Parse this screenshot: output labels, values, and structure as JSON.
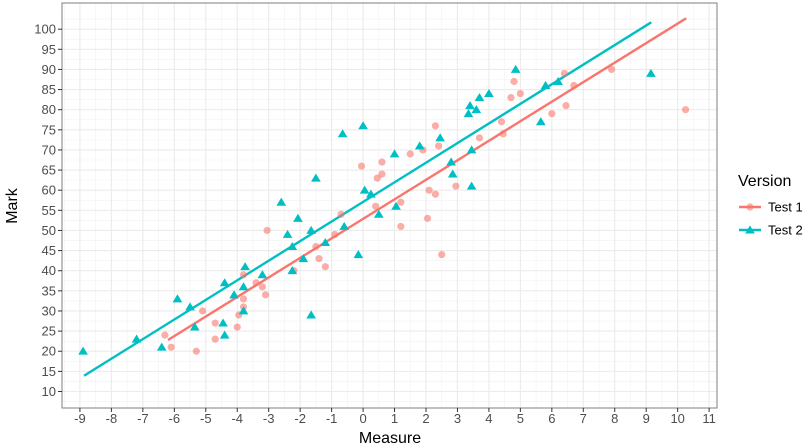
{
  "chart_data": {
    "type": "scatter",
    "xlabel": "Measure",
    "ylabel": "Mark",
    "xlim": [
      -9.57,
      11.25
    ],
    "ylim": [
      5.9,
      106.5
    ],
    "xticks": [
      -9,
      -8,
      -7,
      -6,
      -5,
      -4,
      -3,
      -2,
      -1,
      0,
      1,
      2,
      3,
      4,
      5,
      6,
      7,
      8,
      9,
      10,
      11
    ],
    "yticks": [
      10,
      15,
      20,
      25,
      30,
      35,
      40,
      45,
      50,
      55,
      60,
      65,
      70,
      75,
      80,
      85,
      90,
      95,
      100
    ],
    "grid": true,
    "legend": {
      "title": "Version",
      "placement": "right"
    },
    "series": [
      {
        "name": "Test 1",
        "color": "#F8766D",
        "marker": "circle",
        "points": [
          [
            -6.3,
            24
          ],
          [
            -6.1,
            21
          ],
          [
            -5.3,
            20
          ],
          [
            -5.1,
            30
          ],
          [
            -4.7,
            27
          ],
          [
            -4.7,
            23
          ],
          [
            -4.0,
            26
          ],
          [
            -3.95,
            29
          ],
          [
            -3.8,
            31
          ],
          [
            -3.8,
            33
          ],
          [
            -3.8,
            39
          ],
          [
            -3.4,
            37
          ],
          [
            -3.2,
            36
          ],
          [
            -3.1,
            34
          ],
          [
            -3.05,
            50
          ],
          [
            -2.2,
            40
          ],
          [
            -1.5,
            46
          ],
          [
            -1.4,
            43
          ],
          [
            -1.2,
            41
          ],
          [
            -0.9,
            49
          ],
          [
            -0.7,
            54
          ],
          [
            0.4,
            56
          ],
          [
            1.2,
            57
          ],
          [
            1.2,
            51
          ],
          [
            2.05,
            53
          ],
          [
            2.1,
            60
          ],
          [
            2.3,
            59
          ],
          [
            2.5,
            44
          ],
          [
            -0.05,
            66
          ],
          [
            0.45,
            63
          ],
          [
            0.6,
            64
          ],
          [
            0.6,
            67
          ],
          [
            1.5,
            69
          ],
          [
            1.9,
            70
          ],
          [
            2.3,
            76
          ],
          [
            2.4,
            71
          ],
          [
            2.95,
            61
          ],
          [
            3.7,
            73
          ],
          [
            4.4,
            77
          ],
          [
            4.45,
            74
          ],
          [
            4.7,
            83
          ],
          [
            4.8,
            87
          ],
          [
            5.0,
            84
          ],
          [
            6.0,
            79
          ],
          [
            6.4,
            89
          ],
          [
            6.45,
            81
          ],
          [
            6.7,
            86
          ],
          [
            7.9,
            90
          ],
          [
            10.25,
            80
          ]
        ],
        "fit_line": [
          [
            -6.2,
            22.8
          ],
          [
            10.27,
            102.7
          ]
        ]
      },
      {
        "name": "Test 2",
        "color": "#00BFC4",
        "marker": "triangle",
        "points": [
          [
            -8.9,
            20
          ],
          [
            -7.2,
            23
          ],
          [
            -6.4,
            21
          ],
          [
            -5.9,
            33
          ],
          [
            -5.5,
            31
          ],
          [
            -5.35,
            26
          ],
          [
            -4.45,
            27
          ],
          [
            -4.4,
            24
          ],
          [
            -4.4,
            37
          ],
          [
            -4.1,
            34
          ],
          [
            -3.75,
            41
          ],
          [
            -3.8,
            36
          ],
          [
            -3.8,
            30
          ],
          [
            -3.2,
            39
          ],
          [
            -2.6,
            57
          ],
          [
            -2.4,
            49
          ],
          [
            -2.25,
            46
          ],
          [
            -2.25,
            40
          ],
          [
            -2.07,
            53
          ],
          [
            -1.9,
            43
          ],
          [
            -1.65,
            29
          ],
          [
            -1.65,
            50
          ],
          [
            -1.5,
            63
          ],
          [
            -1.2,
            47
          ],
          [
            -0.6,
            51
          ],
          [
            -0.15,
            44
          ],
          [
            0.05,
            60
          ],
          [
            0.25,
            59
          ],
          [
            0.5,
            54
          ],
          [
            -0.65,
            74
          ],
          [
            0.0,
            76
          ],
          [
            1.0,
            69
          ],
          [
            1.8,
            71
          ],
          [
            2.45,
            73
          ],
          [
            2.8,
            67
          ],
          [
            2.85,
            64
          ],
          [
            3.45,
            70
          ],
          [
            3.45,
            61
          ],
          [
            1.05,
            56
          ],
          [
            3.35,
            79
          ],
          [
            3.4,
            81
          ],
          [
            3.6,
            80
          ],
          [
            3.7,
            83
          ],
          [
            4.0,
            84
          ],
          [
            4.85,
            90
          ],
          [
            5.65,
            77
          ],
          [
            5.8,
            86
          ],
          [
            6.2,
            87
          ],
          [
            9.15,
            89
          ]
        ],
        "fit_line": [
          [
            -8.87,
            13.9
          ],
          [
            9.16,
            101.7
          ]
        ]
      }
    ]
  }
}
